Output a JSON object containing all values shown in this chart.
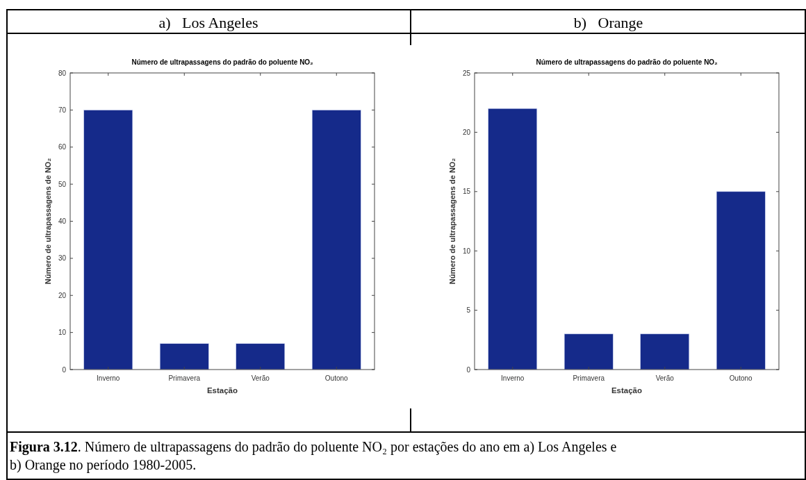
{
  "chart_data": [
    {
      "type": "bar",
      "subtitle": "a)   Los Angeles",
      "title": "Número de ultrapassagens do padrão do poluente NO₂",
      "xlabel": "Estação",
      "ylabel": "Número de ultrapassagens de NO₂",
      "categories": [
        "Inverno",
        "Primavera",
        "Verão",
        "Outono"
      ],
      "values": [
        70,
        7,
        7,
        70
      ],
      "color": "#152a8a",
      "ylim": [
        0,
        80
      ],
      "yticks": [
        0,
        10,
        20,
        30,
        40,
        50,
        60,
        70,
        80
      ],
      "grid": false,
      "annotations": [
        "Figura 3.12. Número de ultrapassagens do padrão do poluente NO₂ por estações do ano em a) Los Angeles e b) Orange no período 1980-2005."
      ]
    },
    {
      "type": "bar",
      "subtitle": "b)   Orange",
      "title": "Número de ultrapassagens do padrão do poluente NO₂",
      "xlabel": "Estação",
      "ylabel": "Número de ultrapassagens de NO₂",
      "categories": [
        "Inverno",
        "Primavera",
        "Verão",
        "Outono"
      ],
      "values": [
        22,
        3,
        3,
        15
      ],
      "color": "#152a8a",
      "ylim": [
        0,
        25
      ],
      "yticks": [
        0,
        5,
        10,
        15,
        20,
        25
      ],
      "grid": false
    }
  ]
}
